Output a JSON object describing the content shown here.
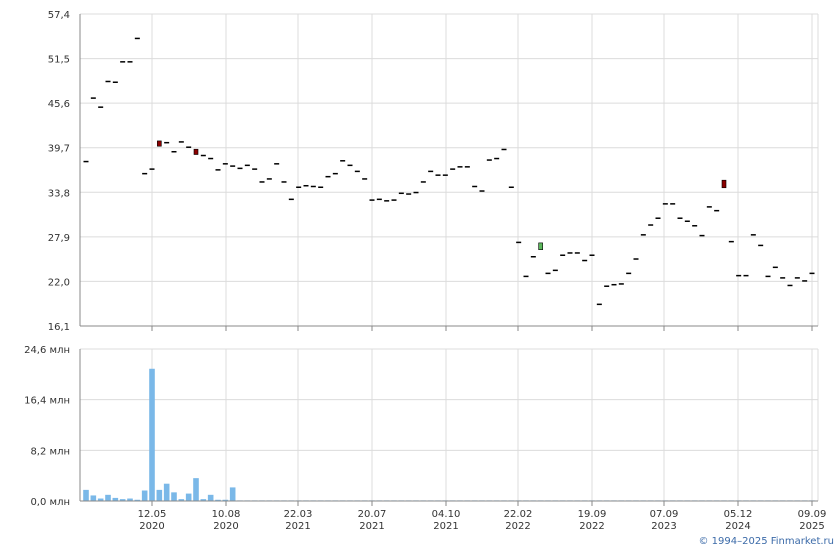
{
  "chart_data": [
    {
      "type": "candlestick",
      "ylim": [
        16.1,
        57.4
      ],
      "yticks": [
        "57,4",
        "51,5",
        "45,6",
        "39,7",
        "33,8",
        "27,9",
        "22,0",
        "16,1"
      ],
      "grid": true,
      "candles": [
        {
          "o": 37.9,
          "c": 37.9
        },
        {
          "o": 46.3,
          "c": 46.3
        },
        {
          "o": 45.1,
          "c": 45.1
        },
        {
          "o": 48.5,
          "c": 48.5
        },
        {
          "o": 48.4,
          "c": 48.4
        },
        {
          "o": 51.1,
          "c": 51.1
        },
        {
          "o": 51.1,
          "c": 51.1
        },
        {
          "o": 54.2,
          "c": 54.2
        },
        {
          "o": 36.3,
          "c": 36.3
        },
        {
          "o": 36.9,
          "c": 36.9
        },
        {
          "o": 40.6,
          "c": 39.9
        },
        {
          "o": 40.4,
          "c": 40.4
        },
        {
          "o": 39.2,
          "c": 39.2
        },
        {
          "o": 40.5,
          "c": 40.5
        },
        {
          "o": 39.8,
          "c": 39.8
        },
        {
          "o": 39.5,
          "c": 38.8
        },
        {
          "o": 38.7,
          "c": 38.7
        },
        {
          "o": 38.3,
          "c": 38.3
        },
        {
          "o": 36.8,
          "c": 36.8
        },
        {
          "o": 37.6,
          "c": 37.6
        },
        {
          "o": 37.3,
          "c": 37.3
        },
        {
          "o": 37.0,
          "c": 37.0
        },
        {
          "o": 37.4,
          "c": 37.4
        },
        {
          "o": 36.9,
          "c": 36.9
        },
        {
          "o": 35.2,
          "c": 35.2
        },
        {
          "o": 35.6,
          "c": 35.6
        },
        {
          "o": 37.6,
          "c": 37.6
        },
        {
          "o": 35.2,
          "c": 35.2
        },
        {
          "o": 32.9,
          "c": 32.9
        },
        {
          "o": 34.5,
          "c": 34.5
        },
        {
          "o": 34.7,
          "c": 34.7
        },
        {
          "o": 34.6,
          "c": 34.6
        },
        {
          "o": 34.5,
          "c": 34.5
        },
        {
          "o": 35.9,
          "c": 35.9
        },
        {
          "o": 36.3,
          "c": 36.3
        },
        {
          "o": 38.0,
          "c": 38.0
        },
        {
          "o": 37.4,
          "c": 37.4
        },
        {
          "o": 36.6,
          "c": 36.6
        },
        {
          "o": 35.6,
          "c": 35.6
        },
        {
          "o": 32.8,
          "c": 32.8
        },
        {
          "o": 32.9,
          "c": 32.9
        },
        {
          "o": 32.7,
          "c": 32.7
        },
        {
          "o": 32.8,
          "c": 32.8
        },
        {
          "o": 33.7,
          "c": 33.7
        },
        {
          "o": 33.6,
          "c": 33.6
        },
        {
          "o": 33.8,
          "c": 33.8
        },
        {
          "o": 35.2,
          "c": 35.2
        },
        {
          "o": 36.6,
          "c": 36.6
        },
        {
          "o": 36.1,
          "c": 36.1
        },
        {
          "o": 36.1,
          "c": 36.1
        },
        {
          "o": 36.9,
          "c": 36.9
        },
        {
          "o": 37.2,
          "c": 37.2
        },
        {
          "o": 37.2,
          "c": 37.2
        },
        {
          "o": 34.6,
          "c": 34.6
        },
        {
          "o": 34.0,
          "c": 34.0
        },
        {
          "o": 38.1,
          "c": 38.1
        },
        {
          "o": 38.3,
          "c": 38.3
        },
        {
          "o": 39.5,
          "c": 39.5
        },
        {
          "o": 34.5,
          "c": 34.5
        },
        {
          "o": 27.2,
          "c": 27.2
        },
        {
          "o": 22.7,
          "c": 22.7
        },
        {
          "o": 25.3,
          "c": 25.3
        },
        {
          "o": 26.2,
          "c": 27.1
        },
        {
          "o": 23.1,
          "c": 23.1
        },
        {
          "o": 23.5,
          "c": 23.5
        },
        {
          "o": 25.5,
          "c": 25.5
        },
        {
          "o": 25.8,
          "c": 25.8
        },
        {
          "o": 25.8,
          "c": 25.8
        },
        {
          "o": 24.8,
          "c": 24.8
        },
        {
          "o": 25.5,
          "c": 25.5
        },
        {
          "o": 19.0,
          "c": 19.0
        },
        {
          "o": 21.4,
          "c": 21.4
        },
        {
          "o": 21.6,
          "c": 21.6
        },
        {
          "o": 21.7,
          "c": 21.7
        },
        {
          "o": 23.1,
          "c": 23.1
        },
        {
          "o": 25.0,
          "c": 25.0
        },
        {
          "o": 28.2,
          "c": 28.2
        },
        {
          "o": 29.5,
          "c": 29.5
        },
        {
          "o": 30.4,
          "c": 30.4
        },
        {
          "o": 32.3,
          "c": 32.3
        },
        {
          "o": 32.3,
          "c": 32.3
        },
        {
          "o": 30.4,
          "c": 30.4
        },
        {
          "o": 30.0,
          "c": 30.0
        },
        {
          "o": 29.4,
          "c": 29.4
        },
        {
          "o": 28.1,
          "c": 28.1
        },
        {
          "o": 31.9,
          "c": 31.9
        },
        {
          "o": 31.4,
          "c": 31.4
        },
        {
          "o": 35.4,
          "c": 34.4
        },
        {
          "o": 27.3,
          "c": 27.3
        },
        {
          "o": 22.8,
          "c": 22.8
        },
        {
          "o": 22.8,
          "c": 22.8
        },
        {
          "o": 28.2,
          "c": 28.2
        },
        {
          "o": 26.8,
          "c": 26.8
        },
        {
          "o": 22.7,
          "c": 22.7
        },
        {
          "o": 23.9,
          "c": 23.9
        },
        {
          "o": 22.5,
          "c": 22.5
        },
        {
          "o": 21.5,
          "c": 21.5
        },
        {
          "o": 22.5,
          "c": 22.5
        },
        {
          "o": 22.1,
          "c": 22.1
        },
        {
          "o": 23.1,
          "c": 23.1
        }
      ],
      "colors": {
        "up": "#5cb85c",
        "down": "#8b0000",
        "flat": "#000000"
      }
    },
    {
      "type": "bar",
      "ylim": [
        0,
        24.6
      ],
      "yticks": [
        "24,6 млн",
        "16,4 млн",
        "8,2 млн",
        "0,0 млн"
      ],
      "values": [
        1.8,
        0.9,
        0.4,
        1.0,
        0.5,
        0.3,
        0.4,
        0.2,
        1.7,
        21.4,
        1.8,
        2.8,
        1.4,
        0.3,
        1.2,
        3.7,
        0.3,
        1.0,
        0.2,
        0.2,
        2.2,
        0.1,
        0.1,
        0.1,
        0.1,
        0.1,
        0.1,
        0.1,
        0.1,
        0.1,
        0.1,
        0.1,
        0.1,
        0.1,
        0.1,
        0.1,
        0.1,
        0.1,
        0.1,
        0.1,
        0.1,
        0.1,
        0.1,
        0.1,
        0.1,
        0.1,
        0.1,
        0.1,
        0.1,
        0.1,
        0.1,
        0.1,
        0.1,
        0.1,
        0.1,
        0.1,
        0.1,
        0.1,
        0.1,
        0.1,
        0.1,
        0.1,
        0.1,
        0.1,
        0.1,
        0.1,
        0.1,
        0.1,
        0.1,
        0.1,
        0.1,
        0.1,
        0.1,
        0.1,
        0.1,
        0.1,
        0.1,
        0.1,
        0.1,
        0.1,
        0.1,
        0.1,
        0.1,
        0.1,
        0.1,
        0.1,
        0.1,
        0.1,
        0.1,
        0.1,
        0.1,
        0.1,
        0.1,
        0.1,
        0.1,
        0.1,
        0.1,
        0.1,
        0.1,
        0.1
      ],
      "series_color": "#7ab8e8"
    }
  ],
  "xaxis": {
    "ticks": [
      {
        "date": "12.05",
        "year": "2020"
      },
      {
        "date": "10.08",
        "year": "2020"
      },
      {
        "date": "22.03",
        "year": "2021"
      },
      {
        "date": "20.07",
        "year": "2021"
      },
      {
        "date": "04.10",
        "year": "2021"
      },
      {
        "date": "22.02",
        "year": "2022"
      },
      {
        "date": "19.09",
        "year": "2022"
      },
      {
        "date": "07.09",
        "year": "2023"
      },
      {
        "date": "05.12",
        "year": "2024"
      },
      {
        "date": "09.09",
        "year": "2025"
      }
    ]
  },
  "credit": "© 1994–2025 Finmarket.ru"
}
